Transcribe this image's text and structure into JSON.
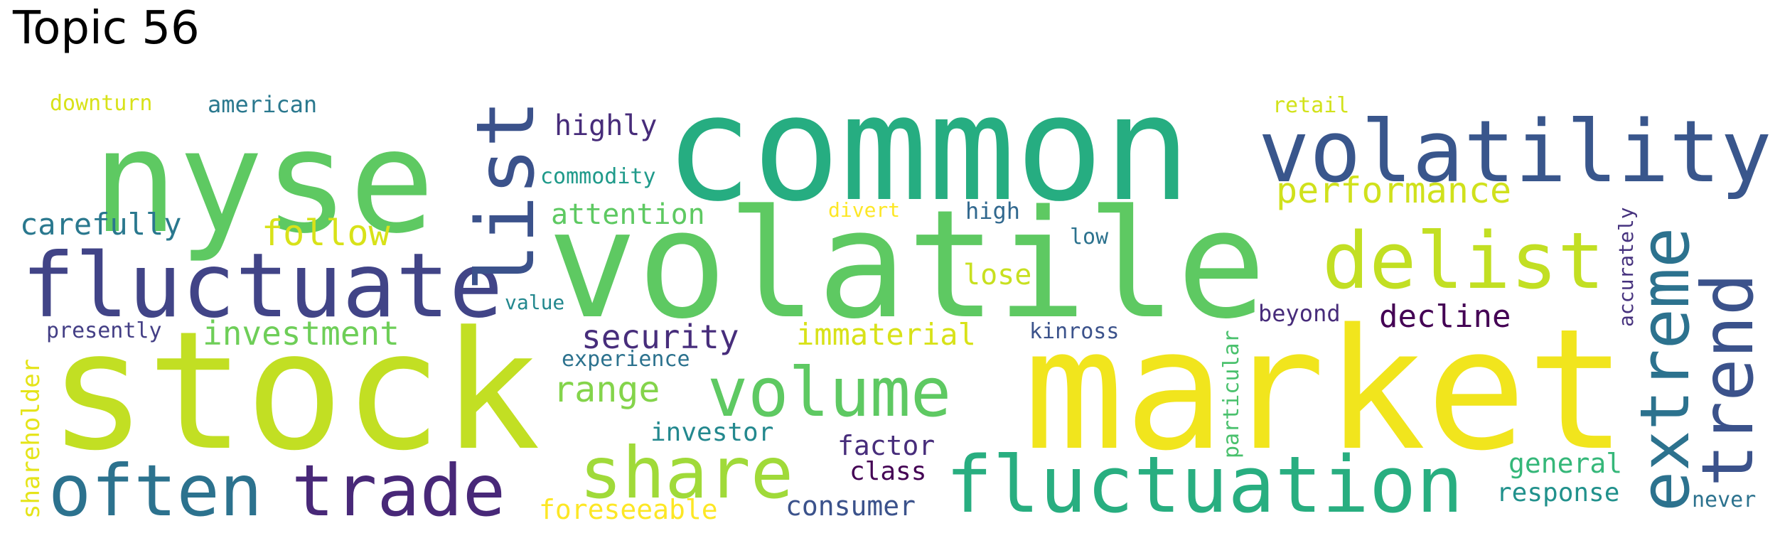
{
  "title": "Topic 56",
  "words": [
    {
      "text": "common",
      "color": "#26ad81"
    },
    {
      "text": "nyse",
      "color": "#5ec962"
    },
    {
      "text": "volatile",
      "color": "#5ec962"
    },
    {
      "text": "stock",
      "color": "#c2df23"
    },
    {
      "text": "market",
      "color": "#f1e51d"
    },
    {
      "text": "volatility",
      "color": "#39568c"
    },
    {
      "text": "fluctuate",
      "color": "#414487"
    },
    {
      "text": "delist",
      "color": "#c2df23"
    },
    {
      "text": "list",
      "color": "#3b528b"
    },
    {
      "text": "extreme",
      "color": "#2c728e"
    },
    {
      "text": "trend",
      "color": "#3b528b"
    },
    {
      "text": "often",
      "color": "#2c728e"
    },
    {
      "text": "trade",
      "color": "#482878"
    },
    {
      "text": "share",
      "color": "#a0da39"
    },
    {
      "text": "volume",
      "color": "#5ec962"
    },
    {
      "text": "fluctuation",
      "color": "#28ae80"
    },
    {
      "text": "performance",
      "color": "#d0e11c"
    },
    {
      "text": "follow",
      "color": "#d8e219"
    },
    {
      "text": "carefully",
      "color": "#2a788e"
    },
    {
      "text": "investment",
      "color": "#6ece58"
    },
    {
      "text": "security",
      "color": "#472d7b"
    },
    {
      "text": "range",
      "color": "#84d44b"
    },
    {
      "text": "decline",
      "color": "#440154"
    },
    {
      "text": "immaterial",
      "color": "#d8e219"
    },
    {
      "text": "highly",
      "color": "#472c7a"
    },
    {
      "text": "attention",
      "color": "#5ec962"
    },
    {
      "text": "commodity",
      "color": "#1f9a8a"
    },
    {
      "text": "investor",
      "color": "#23888e"
    },
    {
      "text": "factor",
      "color": "#472d7b"
    },
    {
      "text": "class",
      "color": "#440154"
    },
    {
      "text": "consumer",
      "color": "#3b528b"
    },
    {
      "text": "foreseeable",
      "color": "#fde725"
    },
    {
      "text": "general",
      "color": "#35b779"
    },
    {
      "text": "response",
      "color": "#21918c"
    },
    {
      "text": "shareholder",
      "color": "#e5e419"
    },
    {
      "text": "presently",
      "color": "#433e85"
    },
    {
      "text": "value",
      "color": "#23888e"
    },
    {
      "text": "experience",
      "color": "#2c728e"
    },
    {
      "text": "downturn",
      "color": "#d8e219"
    },
    {
      "text": "american",
      "color": "#2a788e"
    },
    {
      "text": "retail",
      "color": "#d2e21b"
    },
    {
      "text": "divert",
      "color": "#fde725"
    },
    {
      "text": "high",
      "color": "#31688e"
    },
    {
      "text": "low",
      "color": "#2c728e"
    },
    {
      "text": "lose",
      "color": "#c8e020"
    },
    {
      "text": "kinross",
      "color": "#3b528b"
    },
    {
      "text": "beyond",
      "color": "#472c7a"
    },
    {
      "text": "particular",
      "color": "#4ac16d"
    },
    {
      "text": "accurately",
      "color": "#46327e"
    },
    {
      "text": "never",
      "color": "#2c728e"
    }
  ]
}
